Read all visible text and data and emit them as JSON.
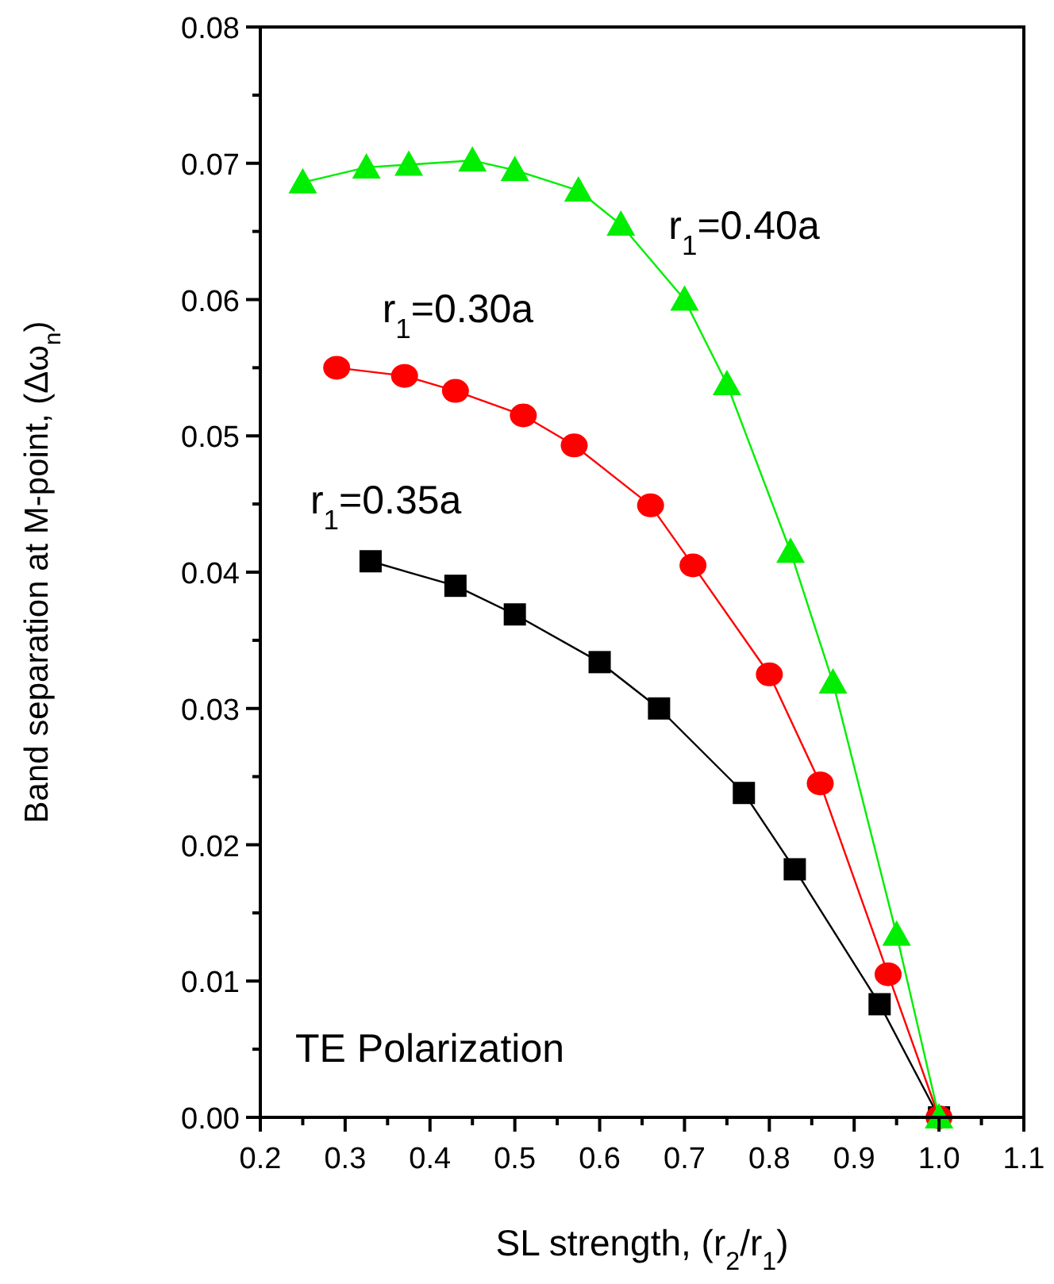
{
  "chart_data": {
    "type": "line",
    "xlabel": "SL strength, (r$_{2}$/r$_{1}$)",
    "ylabel": "Band separation at M-point, (Δω$_{n}$)",
    "annotations": [
      "TE Polarization"
    ],
    "xlim": [
      0.2,
      1.1
    ],
    "ylim": [
      0,
      0.08
    ],
    "xticks": [
      {
        "value": 0.2,
        "label": "0.2"
      },
      {
        "value": 0.25,
        "label": null
      },
      {
        "value": 0.3,
        "label": "0.3"
      },
      {
        "value": 0.35,
        "label": null
      },
      {
        "value": 0.4,
        "label": "0.4"
      },
      {
        "value": 0.45,
        "label": null
      },
      {
        "value": 0.5,
        "label": "0.5"
      },
      {
        "value": 0.55,
        "label": null
      },
      {
        "value": 0.6,
        "label": "0.6"
      },
      {
        "value": 0.65,
        "label": null
      },
      {
        "value": 0.7,
        "label": "0.7"
      },
      {
        "value": 0.75,
        "label": null
      },
      {
        "value": 0.8,
        "label": "0.8"
      },
      {
        "value": 0.85,
        "label": null
      },
      {
        "value": 0.9,
        "label": "0.9"
      },
      {
        "value": 0.95,
        "label": null
      },
      {
        "value": 1.0,
        "label": "1.0"
      },
      {
        "value": 1.05,
        "label": null
      },
      {
        "value": 1.1,
        "label": "1.1"
      }
    ],
    "yticks": [
      {
        "value": 0,
        "label": "0.00"
      },
      {
        "value": 0.005,
        "label": null
      },
      {
        "value": 0.01,
        "label": "0.01"
      },
      {
        "value": 0.015,
        "label": null
      },
      {
        "value": 0.02,
        "label": "0.02"
      },
      {
        "value": 0.025,
        "label": null
      },
      {
        "value": 0.03,
        "label": "0.03"
      },
      {
        "value": 0.035,
        "label": null
      },
      {
        "value": 0.04,
        "label": "0.04"
      },
      {
        "value": 0.045,
        "label": null
      },
      {
        "value": 0.05,
        "label": "0.05"
      },
      {
        "value": 0.055,
        "label": null
      },
      {
        "value": 0.06,
        "label": "0.06"
      },
      {
        "value": 0.065,
        "label": null
      },
      {
        "value": 0.07,
        "label": "0.07"
      },
      {
        "value": 0.075,
        "label": null
      },
      {
        "value": 0.08,
        "label": "0.08"
      }
    ],
    "grid": false,
    "legend": false,
    "line_style": "solid",
    "series": [
      {
        "name": "r$_{1}$=0.35a",
        "color": "#000000",
        "marker": "square",
        "x": [
          0.33,
          0.43,
          0.5,
          0.6,
          0.67,
          0.77,
          0.83,
          0.93,
          1.0
        ],
        "values": [
          0.0408,
          0.039,
          0.0369,
          0.0334,
          0.03,
          0.0238,
          0.0182,
          0.0083,
          0
        ]
      },
      {
        "name": "r$_{1}$=0.30a",
        "color": "#ff0000",
        "marker": "circle",
        "x": [
          0.29,
          0.37,
          0.43,
          0.51,
          0.57,
          0.66,
          0.71,
          0.8,
          0.86,
          0.94,
          1.0
        ],
        "values": [
          0.055,
          0.0544,
          0.0533,
          0.0515,
          0.0493,
          0.0449,
          0.0405,
          0.0325,
          0.0245,
          0.0105,
          0
        ]
      },
      {
        "name": "r$_{1}$=0.40a",
        "color": "#00ee00",
        "marker": "triangle",
        "x": [
          0.25,
          0.325,
          0.375,
          0.45,
          0.5,
          0.575,
          0.625,
          0.7,
          0.75,
          0.825,
          0.875,
          0.95,
          1.0
        ],
        "values": [
          0.0686,
          0.0697,
          0.0699,
          0.0702,
          0.0695,
          0.068,
          0.0655,
          0.06,
          0.0538,
          0.0415,
          0.0319,
          0.0134,
          0
        ]
      }
    ]
  }
}
